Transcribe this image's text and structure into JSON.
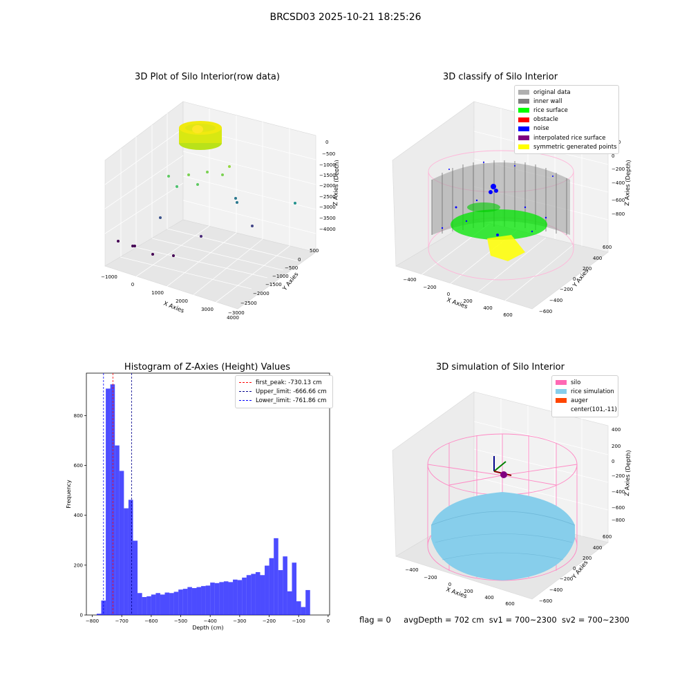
{
  "figure": {
    "title": "BRCSD03 2025-10-21 18:25:26",
    "status": {
      "flag": "flag = 0",
      "avg_depth": "avgDepth = 702 cm",
      "sv1": "sv1 = 700~2300",
      "sv2": "sv2 = 700~2300"
    }
  },
  "panels": {
    "raw": {
      "title": "3D Plot of Silo Interior(row data)",
      "xlabel": "X Axies",
      "ylabel": "Y Axies",
      "zlabel": "Z Axies (Depth)",
      "xticks": [
        "−1000",
        "0",
        "1000",
        "2000",
        "3000",
        "4000"
      ],
      "yticks": [
        "500",
        "0",
        "−500",
        "−1000",
        "−1500",
        "−2000",
        "−2500",
        "−3000"
      ],
      "zticks": [
        "0",
        "−500",
        "−1000",
        "−1500",
        "−2000",
        "−2500",
        "−3000",
        "−3500",
        "−4000"
      ]
    },
    "classify": {
      "title": "3D classify of Silo Interior",
      "xlabel": "X Axies",
      "ylabel": "Y Axies",
      "zlabel": "Z Axies (Depth)",
      "xticks": [
        "−400",
        "−200",
        "0",
        "200",
        "400",
        "600"
      ],
      "yticks": [
        "600",
        "400",
        "200",
        "0",
        "−200",
        "−400",
        "−600"
      ],
      "zticks": [
        "200",
        "0",
        "−200",
        "−400",
        "−600",
        "−800"
      ],
      "legend": [
        {
          "label": "original data",
          "color": "#b0b0b0"
        },
        {
          "label": "inner wall",
          "color": "#808080"
        },
        {
          "label": "rice surface",
          "color": "#00ff00"
        },
        {
          "label": "obstacle",
          "color": "#ff0000"
        },
        {
          "label": "noise",
          "color": "#0000ff"
        },
        {
          "label": "interpolated rice surface",
          "color": "#800080"
        },
        {
          "label": "symmetric generated points",
          "color": "#ffff00"
        }
      ]
    },
    "simulation": {
      "title": "3D simulation of Silo Interior",
      "xlabel": "X Axies",
      "ylabel": "Y Axies",
      "zlabel": "Z Axies (Depth)",
      "xticks": [
        "−400",
        "−200",
        "0",
        "200",
        "400",
        "600"
      ],
      "yticks": [
        "600",
        "400",
        "200",
        "0",
        "−200",
        "−400",
        "−600"
      ],
      "zticks": [
        "400",
        "200",
        "0",
        "−200",
        "−400",
        "−600",
        "−800"
      ],
      "legend": [
        {
          "label": "silo",
          "color": "#ff69b4"
        },
        {
          "label": "rice simulation",
          "color": "#87ceeb"
        },
        {
          "label": "auger",
          "color": "#ff4500"
        },
        {
          "label": "center(101,-11)",
          "color": ""
        }
      ]
    }
  },
  "chart_data": {
    "type": "bar",
    "title": "Histogram of Z-Axies (Height) Values",
    "xlabel": "Depth (cm)",
    "ylabel": "Frequency",
    "xlim": [
      -820,
      5
    ],
    "ylim": [
      0,
      970
    ],
    "xticks": [
      -800,
      -700,
      -600,
      -500,
      -400,
      -300,
      -200,
      -100,
      0
    ],
    "yticks": [
      0,
      200,
      400,
      600,
      800
    ],
    "bar_color": "#0000ff",
    "bin_start": -785,
    "bin_width": 15.4,
    "values": [
      5,
      58,
      908,
      925,
      680,
      578,
      428,
      462,
      298,
      88,
      72,
      75,
      82,
      88,
      82,
      90,
      88,
      93,
      102,
      105,
      112,
      108,
      112,
      116,
      118,
      130,
      128,
      132,
      135,
      132,
      142,
      140,
      150,
      160,
      165,
      172,
      160,
      198,
      228,
      308,
      180,
      235,
      95,
      210,
      55,
      32,
      100
    ],
    "vlines": [
      {
        "label": "first_peak: -730.13 cm",
        "x": -730.13,
        "color": "#ff0000"
      },
      {
        "label": "Upper_limit: -666.66 cm",
        "x": -666.66,
        "color": "#00008b"
      },
      {
        "label": "Lower_limit: -761.86 cm",
        "x": -761.86,
        "color": "#0000ff"
      }
    ]
  }
}
